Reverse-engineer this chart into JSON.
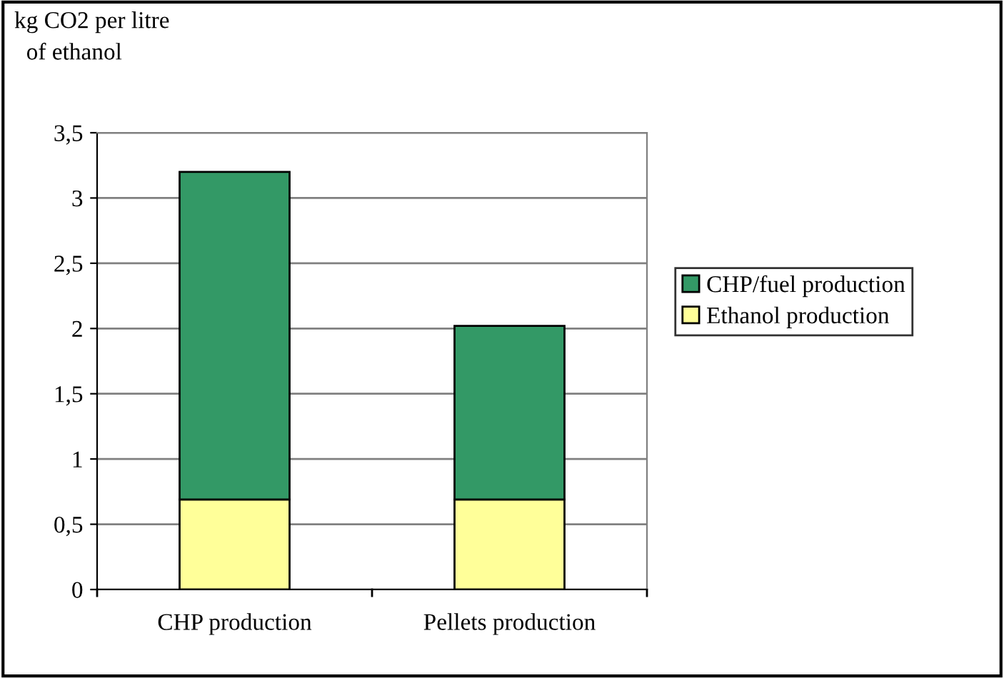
{
  "chart_data": {
    "type": "bar",
    "ylabel": "kg CO2 per litre\n  of ethanol",
    "categories": [
      "CHP production",
      "Pellets production"
    ],
    "stacked": true,
    "series": [
      {
        "name": "Ethanol production",
        "color": "#ffff99",
        "values": [
          0.69,
          0.69
        ]
      },
      {
        "name": "CHP/fuel production",
        "color": "#339966",
        "values": [
          2.51,
          1.33
        ]
      }
    ],
    "ylim": [
      0,
      3.5
    ],
    "yticks": [
      0,
      {
        "value": 0.5,
        "label": "0,5"
      },
      1,
      {
        "value": 1.5,
        "label": "1,5"
      },
      2,
      {
        "value": 2.5,
        "label": "2,5"
      },
      3,
      {
        "value": 3.5,
        "label": "3,5"
      }
    ],
    "grid": "y",
    "legend": "right"
  }
}
